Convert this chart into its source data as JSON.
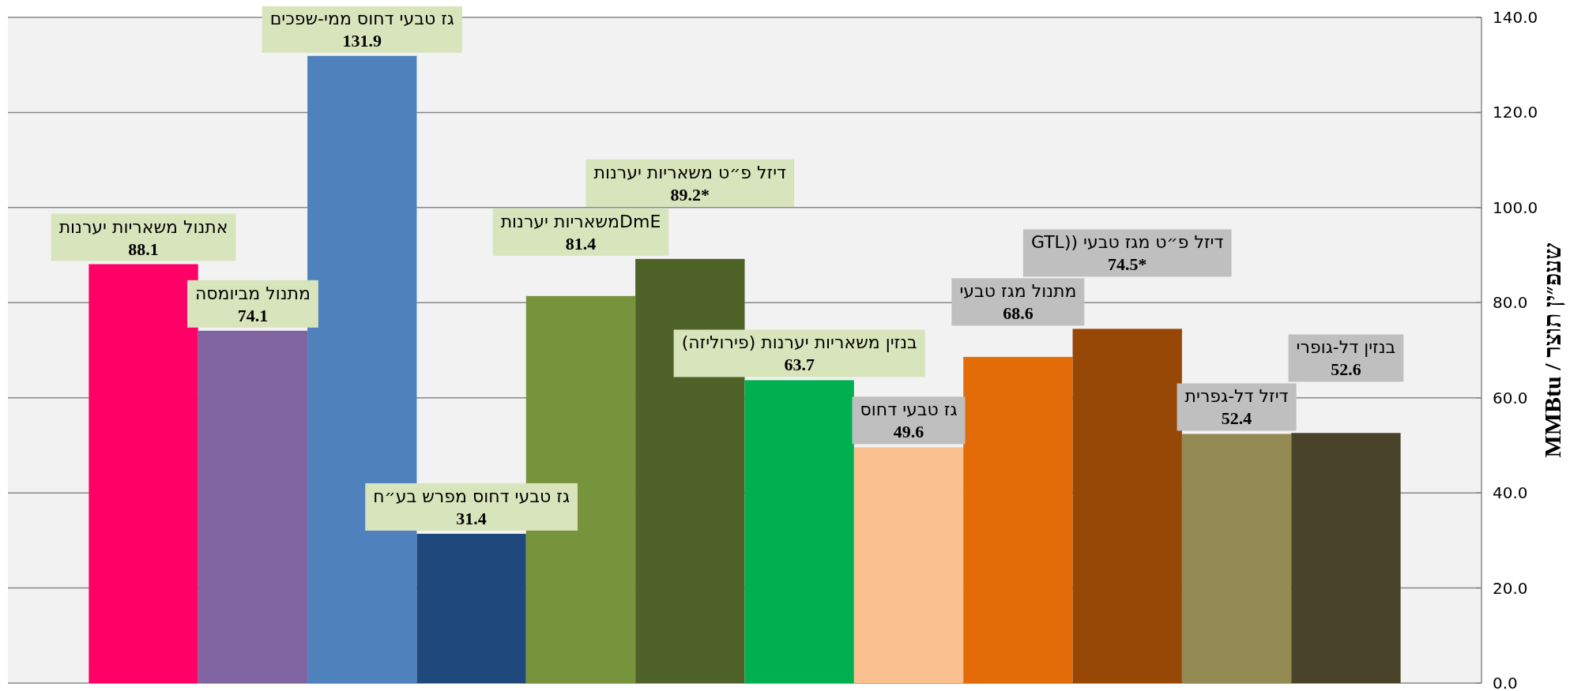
{
  "chart_data": {
    "type": "bar",
    "categories": [
      "אתנול משאריות יערנות",
      "מתנול מביומסה",
      "גז טבעי דחוס ממי-שפכים",
      "גז טבעי דחוס מפרש בע״ח",
      "DmEמשאריות יערנות",
      "דיזל פ״ט משאריות יערנות",
      "בנזין משאריות יערנות (פירוליזה)",
      "גז טבעי דחוס",
      "מתנול מגז טבעי",
      "דיזל פ״ט מגז טבעי ((GTL",
      "דיזל דל-גפרית",
      "בנזין דל-גופרי"
    ],
    "values": [
      88.1,
      74.1,
      131.9,
      31.4,
      81.4,
      89.2,
      63.7,
      49.6,
      68.6,
      74.5,
      52.4,
      52.6
    ],
    "colors": [
      "#ff0066",
      "#8064a2",
      "#4f81bd",
      "#1f497d",
      "#77933c",
      "#4f6228",
      "#00b050",
      "#fac090",
      "#e36c09",
      "#974706",
      "#948a54",
      "#494429"
    ],
    "value_labels": [
      "88.1",
      "74.1",
      "131.9",
      "31.4",
      "81.4",
      "89.2*",
      "63.7",
      "49.6",
      "68.6",
      "74.5*",
      "52.4",
      "52.6"
    ],
    "ylabel": "MMBtu / שעפ״ין תוצר",
    "ylim": [
      0,
      140
    ],
    "yticks": [
      {
        "value": 0,
        "label": "0.0"
      },
      {
        "value": 20,
        "label": "20.0"
      },
      {
        "value": 40,
        "label": "40.0"
      },
      {
        "value": 60,
        "label": "60.0"
      },
      {
        "value": 80,
        "label": "80.0"
      },
      {
        "value": 100,
        "label": "100.0"
      },
      {
        "value": 120,
        "label": "120.0"
      },
      {
        "value": 140,
        "label": "140.0"
      }
    ],
    "grid": "y"
  }
}
